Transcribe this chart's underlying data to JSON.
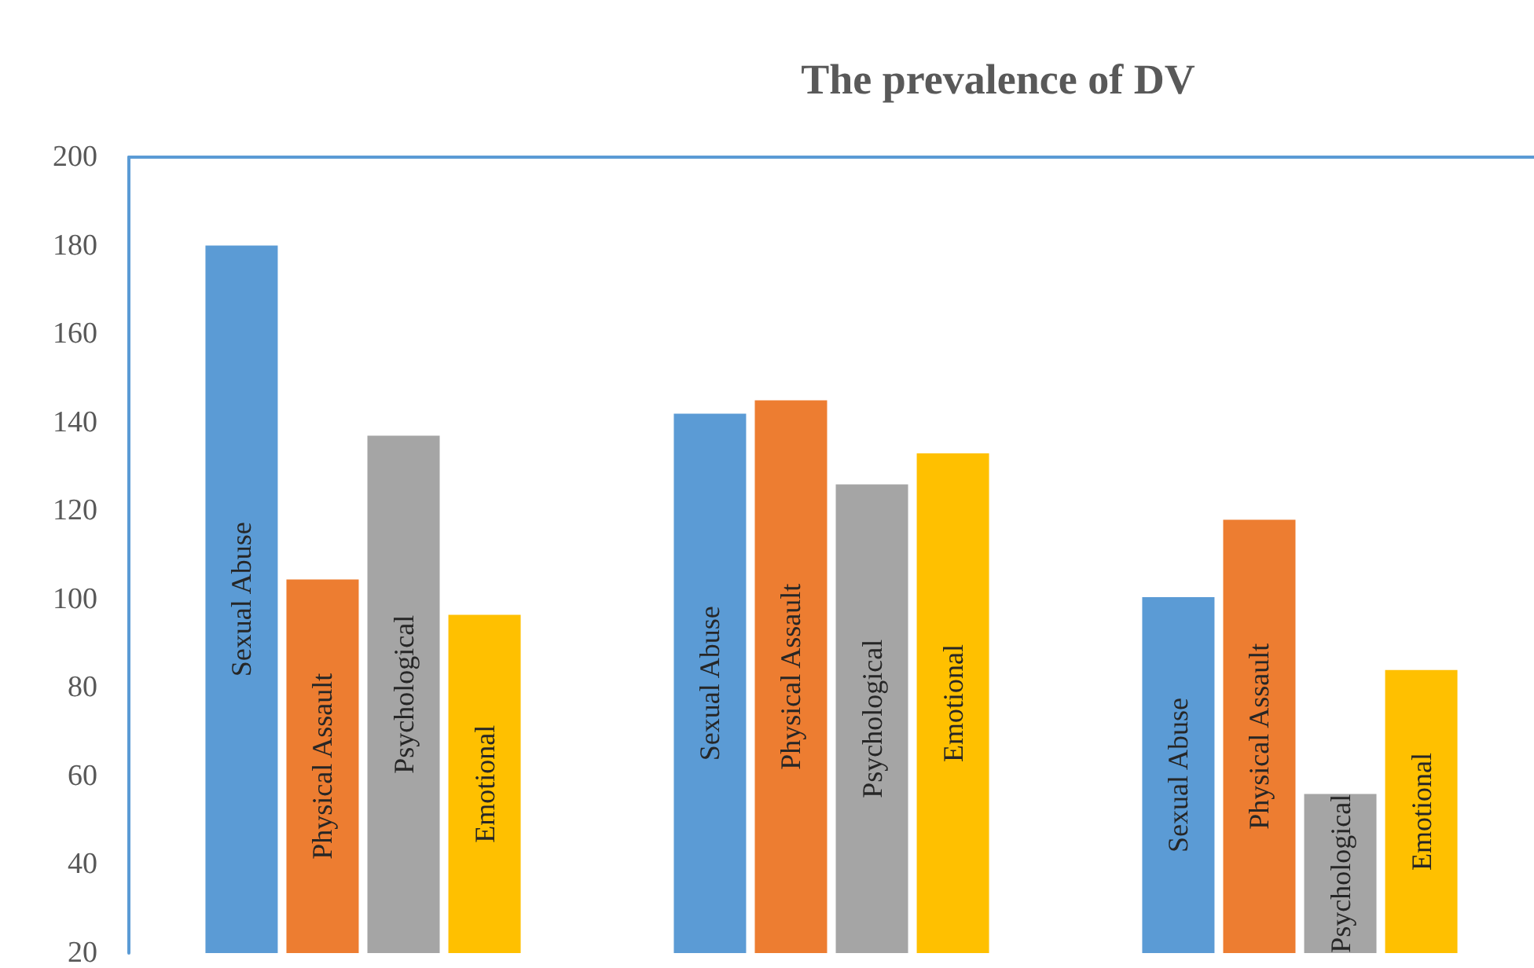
{
  "chart_data": {
    "type": "bar",
    "title": "The prevalence of DV",
    "categories": [
      null,
      null,
      null
    ],
    "series": [
      {
        "name": "Sexual Abuse",
        "color": "#5b9bd5",
        "values": [
          180,
          142,
          100.5
        ]
      },
      {
        "name": "Physical Assault",
        "color": "#ed7d31",
        "values": [
          104.5,
          145,
          118
        ]
      },
      {
        "name": "Psychological",
        "color": "#a5a5a5",
        "values": [
          137,
          126,
          56
        ]
      },
      {
        "name": "Emotional",
        "color": "#ffc000",
        "values": [
          96.5,
          133,
          84
        ]
      }
    ],
    "ylim": [
      20,
      200
    ],
    "yticks": [
      20,
      40,
      60,
      80,
      100,
      120,
      140,
      160,
      180,
      200
    ],
    "grid": false,
    "legend": false
  }
}
